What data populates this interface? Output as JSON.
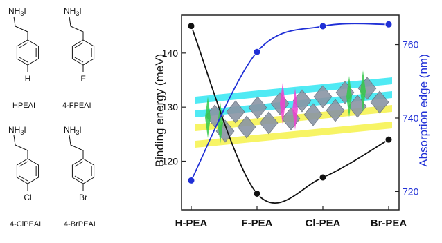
{
  "molecules": [
    {
      "name": "HPEAI",
      "substituent": "H",
      "amine": "NH",
      "amine_sub": "3",
      "counterion": "I"
    },
    {
      "name": "4-FPEAI",
      "substituent": "F",
      "amine": "NH",
      "amine_sub": "3",
      "counterion": "I"
    },
    {
      "name": "4-ClPEAI",
      "substituent": "Cl",
      "amine": "NH",
      "amine_sub": "3",
      "counterion": "I"
    },
    {
      "name": "4-BrPEAI",
      "substituent": "Br",
      "amine": "NH",
      "amine_sub": "3",
      "counterion": "I"
    }
  ],
  "colors": {
    "left_series": "#111111",
    "right_series": "#1f2fd6",
    "right_axis": "#1f2fd6"
  },
  "chart_data": {
    "type": "line",
    "categories": [
      "H-PEA",
      "F-PEA",
      "Cl-PEA",
      "Br-PEA"
    ],
    "series": [
      {
        "axis": "left",
        "values": [
          145,
          114,
          117,
          124
        ],
        "color": "#111111",
        "marker": "filled-circle"
      },
      {
        "axis": "right",
        "values": [
          723,
          758,
          765,
          765.5
        ],
        "color": "#1f2fd6",
        "marker": "filled-circle"
      }
    ],
    "ylabel": "Binding energy (meV)",
    "ylim": [
      111,
      147
    ],
    "yticks": [
      120,
      130,
      140
    ],
    "y2label": "Absorption edge (nm)",
    "y2lim": [
      715,
      768
    ],
    "y2ticks": [
      720,
      740,
      760
    ],
    "grid": false,
    "legend": "none",
    "inset": "layered perovskite crystal structure illustration"
  }
}
